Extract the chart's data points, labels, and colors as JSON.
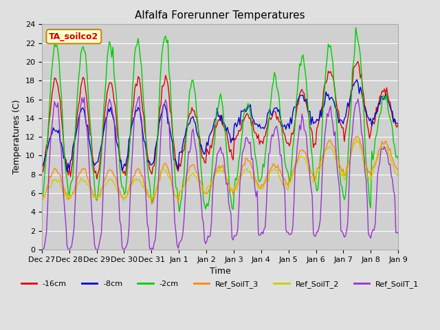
{
  "title": "Alfalfa Forerunner Temperatures",
  "xlabel": "Time",
  "ylabel": "Temperatures (C)",
  "ylim": [
    0,
    24
  ],
  "fig_bg": "#e0e0e0",
  "plot_bg": "#d0d0d0",
  "annotation_text": "TA_soilco2",
  "annotation_color": "#cc0000",
  "annotation_bg": "#ffffcc",
  "annotation_border": "#cc8800",
  "colors": {
    "-16cm": "#dd0000",
    "-8cm": "#0000cc",
    "-2cm": "#00cc00",
    "Ref_SoilT_3": "#ff8800",
    "Ref_SoilT_2": "#cccc00",
    "Ref_SoilT_1": "#9933cc"
  },
  "xtick_labels": [
    "Dec 27",
    "Dec 28",
    "Dec 29",
    "Dec 30",
    "Dec 31",
    "Jan 1",
    "Jan 2",
    "Jan 3",
    "Jan 4",
    "Jan 5",
    "Jan 6",
    "Jan 7",
    "Jan 8",
    "Jan 9"
  ],
  "yticks": [
    0,
    2,
    4,
    6,
    8,
    10,
    12,
    14,
    16,
    18,
    20,
    22,
    24
  ],
  "legend_fontsize": 8,
  "title_fontsize": 11,
  "tick_fontsize": 8
}
